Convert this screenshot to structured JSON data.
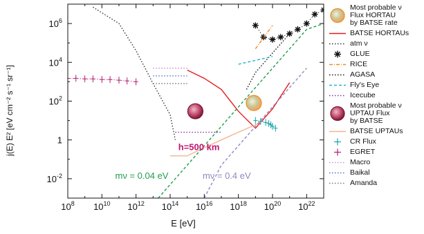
{
  "chart_data": {
    "type": "line",
    "xlabel": "E [eV]",
    "ylabel": "j(E) E² [eV cm⁻² s⁻¹ sr⁻¹]",
    "x_log": true,
    "y_log": true,
    "xlim": [
      100000000.0,
      1e+23
    ],
    "ylim": [
      0.001,
      10000000.0
    ],
    "x_ticks": [
      {
        "v": 100000000.0,
        "base": "10",
        "exp": "8"
      },
      {
        "v": 10000000000.0,
        "base": "10",
        "exp": "10"
      },
      {
        "v": 1000000000000.0,
        "base": "10",
        "exp": "12"
      },
      {
        "v": 100000000000000.0,
        "base": "10",
        "exp": "14"
      },
      {
        "v": 1e+16,
        "base": "10",
        "exp": "16"
      },
      {
        "v": 1e+18,
        "base": "10",
        "exp": "18"
      },
      {
        "v": 1e+20,
        "base": "10",
        "exp": "20"
      },
      {
        "v": 1e+22,
        "base": "10",
        "exp": "22"
      }
    ],
    "y_ticks": [
      {
        "v": 0.01,
        "base": "10",
        "exp": "-2"
      },
      {
        "v": 1,
        "base": "1",
        "exp": ""
      },
      {
        "v": 100,
        "base": "10",
        "exp": "2"
      },
      {
        "v": 10000.0,
        "base": "10",
        "exp": "4"
      },
      {
        "v": 1000000.0,
        "base": "10",
        "exp": "6"
      }
    ],
    "annotations": [
      {
        "text": "h=500 km",
        "x": 300000000000000.0,
        "y": 0.3,
        "color": "#c0136e"
      },
      {
        "text": "mν = 0.04 eV",
        "x": 60000000000.0,
        "y": 0.01,
        "color": "#1f9e4a"
      },
      {
        "text": "mν = 0.4 eV",
        "x": 8000000000000000.0,
        "y": 0.01,
        "color": "#8e88c4"
      }
    ],
    "markers": [
      {
        "name": "Most probable ν Flux HORTAU by BATSE rate",
        "x": 8e+18,
        "y": 80,
        "kind": "orange-sphere"
      },
      {
        "name": "Most probable ν UPTAU Flux by BATSE",
        "x": 3000000000000000.0,
        "y": 30,
        "kind": "pink-sphere"
      }
    ],
    "series": [
      {
        "name": "BATSE  HORTAUs",
        "color": "#e8191d",
        "style": "solid",
        "x": [
          1000000000000000.0,
          1e+16,
          1e+17,
          1e+18,
          1e+19,
          1e+20,
          1e+21
        ],
        "y": [
          4000,
          1500,
          400,
          30,
          4,
          40,
          900
        ]
      },
      {
        "name": "BATSE  UPTAUs",
        "color": "#f4b48e",
        "style": "solid",
        "x": [
          100000000000000.0,
          1000000000000000.0,
          1e+16,
          1e+17,
          1e+18,
          1e+19,
          3e+19
        ],
        "y": [
          0.15,
          0.15,
          0.4,
          1,
          2.5,
          6,
          10
        ]
      },
      {
        "name": "atm ν",
        "color": "#333333",
        "style": "dotted",
        "x": [
          3000000000.0,
          100000000000.0,
          1000000000000.0,
          10000000000000.0,
          100000000000000.0,
          200000000000000.0
        ],
        "y": [
          7000000.0,
          1000000.0,
          40000.0,
          800,
          20,
          1
        ]
      },
      {
        "name": "GLUE",
        "color": "#111111",
        "style": "star",
        "x": [
          1e+19,
          3e+19,
          1e+20,
          3e+20,
          1e+21,
          3e+21,
          1e+22,
          3e+22,
          1e+23
        ],
        "y": [
          800000.0,
          200000.0,
          150000.0,
          200000.0,
          300000.0,
          500000.0,
          1000000.0,
          3000000.0,
          5000000.0
        ]
      },
      {
        "name": "RICE",
        "color": "#f08a24",
        "style": "dashdot",
        "x": [
          1e+19,
          1e+20
        ],
        "y": [
          50000.0,
          800000.0
        ]
      },
      {
        "name": "AGASA",
        "color": "#111111",
        "style": "dotted",
        "x": [
          3e+18,
          1e+19,
          1e+20,
          1e+21
        ],
        "y": [
          400,
          3000,
          30000.0,
          300000.0
        ]
      },
      {
        "name": "Fly's Eye",
        "color": "#1fb5c9",
        "style": "dashed",
        "x": [
          1e+18,
          1e+20
        ],
        "y": [
          8000,
          20000.0
        ]
      },
      {
        "name": "Icecube",
        "color": "#8a2a9c",
        "style": "dotted",
        "x": [
          200000000000000.0,
          1000000000000000.0,
          1e+16,
          1e+17
        ],
        "y": [
          2.5,
          2.5,
          2.5,
          2.5
        ]
      },
      {
        "name": "mν = 0.04 eV",
        "color": "#1f9e4a",
        "style": "dashed",
        "x": [
          20000000000000.0,
          1000000000000000.0,
          1e+16,
          1e+17,
          1e+18,
          1e+19,
          1e+20,
          1e+21,
          1e+22,
          1e+23
        ],
        "y": [
          0.001,
          0.05,
          0.5,
          5,
          50,
          500,
          5000,
          50000.0,
          500000.0,
          1000000.0
        ]
      },
      {
        "name": "mν = 0.4 eV",
        "color": "#8e88c4",
        "style": "dashed",
        "x": [
          1e+16,
          1e+17,
          1e+18,
          1e+19,
          1e+20,
          1e+21,
          1e+22
        ],
        "y": [
          0.001,
          0.05,
          0.5,
          5,
          50,
          500,
          5000
        ]
      },
      {
        "name": "CR Flux",
        "color": "#1aa0a8",
        "style": "errorbar",
        "x": [
          1e+19,
          2e+19,
          4e+19,
          6e+19,
          8e+19,
          1e+20,
          1.5e+20
        ],
        "y": [
          10,
          9,
          8,
          7,
          6,
          5,
          4
        ]
      },
      {
        "name": "EGRET",
        "color": "#b01e6e",
        "style": "errorbar",
        "x": [
          100000000.0,
          300000000.0,
          1000000000.0,
          3000000000.0,
          10000000000.0,
          30000000000.0,
          100000000000.0,
          300000000000.0,
          1000000000000.0
        ],
        "y": [
          1500,
          1500,
          1400,
          1400,
          1300,
          1300,
          1200,
          1100,
          1000
        ]
      },
      {
        "name": "Macro",
        "color": "#d08ad8",
        "style": "dotted",
        "x": [
          10000000000000.0,
          100000000000000.0,
          1000000000000000.0
        ],
        "y": [
          5000,
          5000,
          5000
        ]
      },
      {
        "name": "Baikal",
        "color": "#4a70d8",
        "style": "dotted",
        "x": [
          10000000000000.0,
          100000000000000.0,
          1000000000000000.0
        ],
        "y": [
          2000,
          2000,
          2000
        ]
      },
      {
        "name": "Amanda",
        "color": "#777777",
        "style": "dotted",
        "x": [
          10000000000000.0,
          100000000000000.0,
          1000000000000000.0
        ],
        "y": [
          800,
          800,
          800
        ]
      }
    ],
    "legend": {
      "position": "right",
      "items": [
        {
          "label": "Most probable ν\nFlux HORTAU\nby BATSE rate",
          "kind": "orange-sphere"
        },
        {
          "label": "BATSE  HORTAUs",
          "kind": "line",
          "color": "#e8191d"
        },
        {
          "label": "atm ν",
          "kind": "dotted",
          "color": "#333333"
        },
        {
          "label": "GLUE",
          "kind": "star",
          "color": "#111111"
        },
        {
          "label": "RICE",
          "kind": "dashdot",
          "color": "#f08a24"
        },
        {
          "label": "AGASA",
          "kind": "dotted",
          "color": "#111111"
        },
        {
          "label": "Fly's Eye",
          "kind": "dashed",
          "color": "#1fb5c9"
        },
        {
          "label": "Icecube",
          "kind": "dotted",
          "color": "#8a2a9c"
        },
        {
          "label": "Most probable ν\nUPTAU Flux\nby BATSE",
          "kind": "pink-sphere"
        },
        {
          "label": "BATSE  UPTAUs",
          "kind": "line",
          "color": "#f4b48e"
        },
        {
          "label": "CR Flux",
          "kind": "errorbar",
          "color": "#1aa0a8"
        },
        {
          "label": "EGRET",
          "kind": "errorbar",
          "color": "#b01e6e"
        },
        {
          "label": "Macro",
          "kind": "dotted",
          "color": "#d08ad8"
        },
        {
          "label": "Baikal",
          "kind": "dotted",
          "color": "#4a70d8"
        },
        {
          "label": "Amanda",
          "kind": "dotted",
          "color": "#777777"
        }
      ]
    }
  }
}
